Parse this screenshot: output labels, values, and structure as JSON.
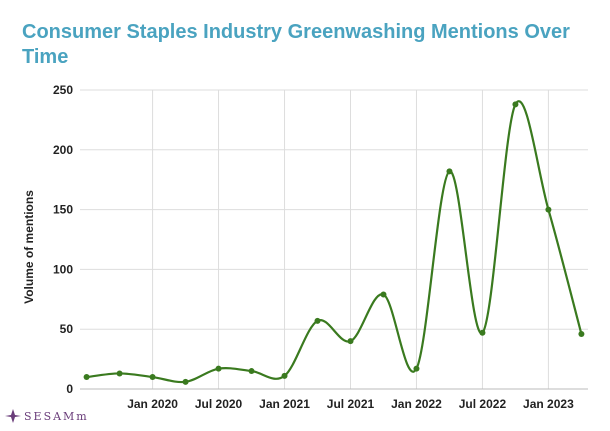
{
  "chart_data": {
    "type": "line",
    "title": "Consumer Staples Industry Greenwashing Mentions  Over Time",
    "xlabel": "",
    "ylabel": "Volume of mentions",
    "ylim": [
      0,
      250
    ],
    "yticks": [
      "0",
      "50",
      "100",
      "150",
      "200",
      "250"
    ],
    "xticks": [
      {
        "label": "Jan 2020",
        "x": "2020-01"
      },
      {
        "label": "Jul 2020",
        "x": "2020-07"
      },
      {
        "label": "Jan 2021",
        "x": "2021-01"
      },
      {
        "label": "Jul 2021",
        "x": "2021-07"
      },
      {
        "label": "Jan 2022",
        "x": "2022-01"
      },
      {
        "label": "Jul 2022",
        "x": "2022-07"
      },
      {
        "label": "Jan 2023",
        "x": "2023-01"
      }
    ],
    "grid": true,
    "series": [
      {
        "color": "#3a7a1f",
        "points": [
          {
            "x": "2019-07",
            "y": 10
          },
          {
            "x": "2019-10",
            "y": 13
          },
          {
            "x": "2020-01",
            "y": 10
          },
          {
            "x": "2020-04",
            "y": 6
          },
          {
            "x": "2020-07",
            "y": 17
          },
          {
            "x": "2020-10",
            "y": 15
          },
          {
            "x": "2021-01",
            "y": 11
          },
          {
            "x": "2021-04",
            "y": 57
          },
          {
            "x": "2021-07",
            "y": 40
          },
          {
            "x": "2021-10",
            "y": 79
          },
          {
            "x": "2022-01",
            "y": 17
          },
          {
            "x": "2022-04",
            "y": 182
          },
          {
            "x": "2022-07",
            "y": 47
          },
          {
            "x": "2022-10",
            "y": 238
          },
          {
            "x": "2023-01",
            "y": 150
          },
          {
            "x": "2023-04",
            "y": 46
          }
        ]
      }
    ]
  },
  "branding": {
    "logo_text": "SESAMm",
    "logo_color": "#6a3d7a"
  }
}
